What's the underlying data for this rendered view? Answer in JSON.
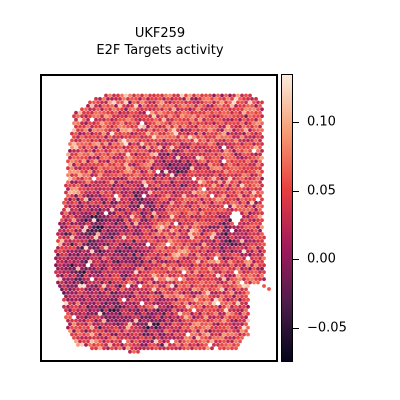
{
  "chart_data": {
    "type": "heatmap",
    "title": "UKF259",
    "subtitle": "E2F Targets activity",
    "xlabel": "",
    "ylabel": "",
    "colorbar": {
      "range": [
        -0.075,
        0.135
      ],
      "ticks": [
        -0.05,
        0.0,
        0.05,
        0.1
      ],
      "tick_labels": [
        "−0.05",
        "0.00",
        "0.05",
        "0.10"
      ],
      "colormap": "rocket",
      "colors": [
        "#03051a",
        "#4c1d4b",
        "#a11a5b",
        "#e83f3f",
        "#f69c73",
        "#faebdd"
      ]
    },
    "data_summary": "Hexagonal spatial spot map of E2F Targets activity across the tissue section; mostly red (~0.03-0.07), darker purple regions on the left and lower-left (~-0.02 to 0.01), orange spots scattered (~0.08-0.10), a few lightest spots near ~0.12"
  }
}
